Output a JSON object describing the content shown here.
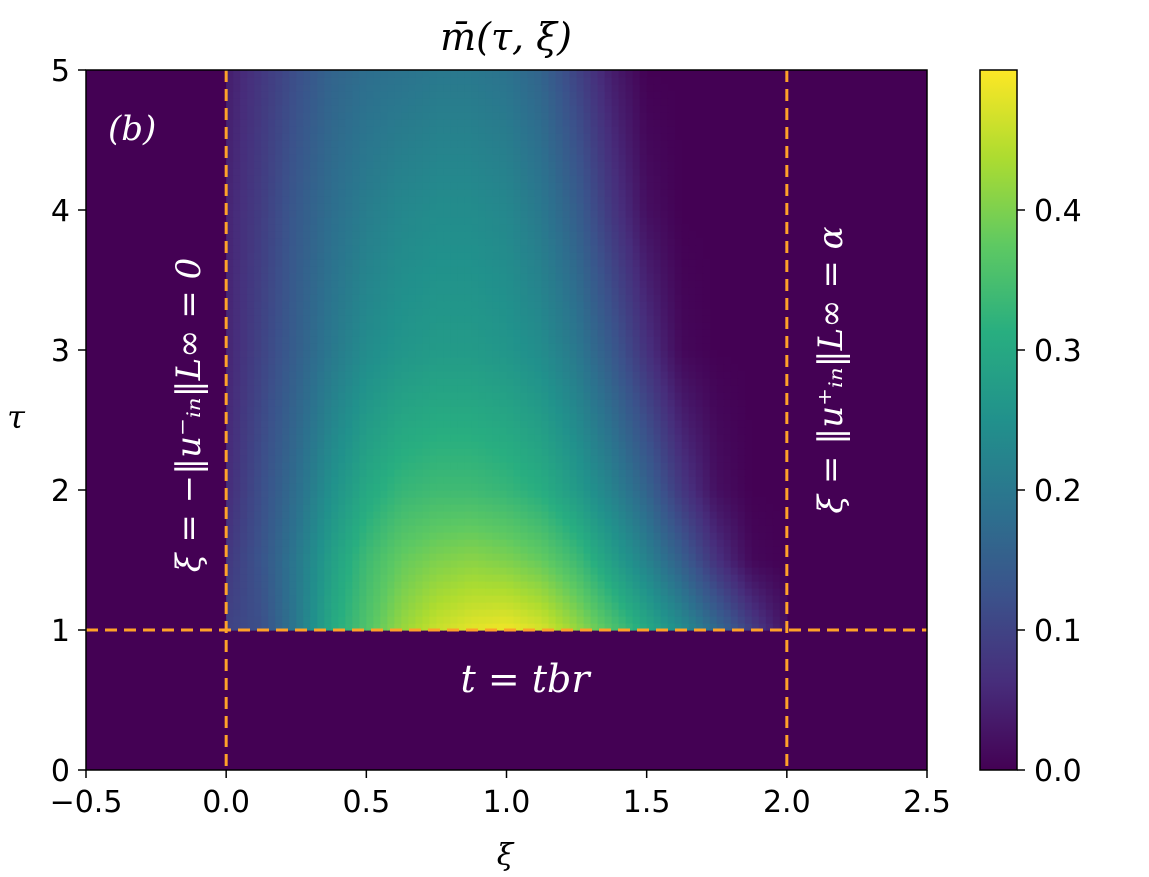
{
  "chart_data": {
    "type": "heatmap",
    "title": "m̄(τ, ξ)",
    "xlabel": "ξ",
    "ylabel": "τ",
    "xlim": [
      -0.5,
      2.5
    ],
    "ylim": [
      0,
      5
    ],
    "x_ticks": [
      "−0.5",
      "0.0",
      "0.5",
      "1.0",
      "1.5",
      "2.0",
      "2.5"
    ],
    "x_tick_values": [
      -0.5,
      0,
      0.5,
      1,
      1.5,
      2,
      2.5
    ],
    "y_ticks": [
      "0",
      "1",
      "2",
      "3",
      "4",
      "5"
    ],
    "y_tick_values": [
      0,
      1,
      2,
      3,
      4,
      5
    ],
    "colormap": "viridis",
    "colorbar": {
      "range": [
        0,
        0.5
      ],
      "ticks": [
        "0.0",
        "0.1",
        "0.2",
        "0.3",
        "0.4"
      ],
      "tick_values": [
        0,
        0.1,
        0.2,
        0.3,
        0.4
      ]
    },
    "grid": false,
    "panel_label": "(b)",
    "background_value": 0,
    "xi_samples": [
      0,
      0.125,
      0.25,
      0.375,
      0.5,
      0.625,
      0.75,
      0.875,
      1.0,
      1.125,
      1.25,
      1.375,
      1.5,
      1.625,
      1.75,
      1.875,
      2.0
    ],
    "tau_samples": [
      1,
      1.5,
      2,
      3,
      4,
      5
    ],
    "values": [
      [
        0.1,
        0.12,
        0.2,
        0.3,
        0.36,
        0.42,
        0.46,
        0.48,
        0.49,
        0.47,
        0.42,
        0.36,
        0.3,
        0.24,
        0.17,
        0.09,
        0.02
      ],
      [
        0.08,
        0.13,
        0.2,
        0.28,
        0.34,
        0.38,
        0.4,
        0.41,
        0.4,
        0.38,
        0.34,
        0.28,
        0.22,
        0.15,
        0.07,
        0.01,
        0.0
      ],
      [
        0.06,
        0.12,
        0.18,
        0.25,
        0.3,
        0.33,
        0.34,
        0.34,
        0.33,
        0.31,
        0.27,
        0.22,
        0.16,
        0.08,
        0.02,
        0.0,
        0.0
      ],
      [
        0.05,
        0.1,
        0.15,
        0.2,
        0.24,
        0.26,
        0.27,
        0.27,
        0.26,
        0.24,
        0.2,
        0.14,
        0.07,
        0.01,
        0.0,
        0.0,
        0.0
      ],
      [
        0.05,
        0.09,
        0.14,
        0.18,
        0.21,
        0.23,
        0.24,
        0.24,
        0.23,
        0.2,
        0.15,
        0.08,
        0.02,
        0.0,
        0.0,
        0.0,
        0.0
      ],
      [
        0.04,
        0.08,
        0.12,
        0.16,
        0.18,
        0.19,
        0.2,
        0.2,
        0.19,
        0.16,
        0.1,
        0.04,
        0.0,
        0.0,
        0.0,
        0.0,
        0.0
      ]
    ],
    "reference_lines": {
      "color": "#ffa229",
      "vertical": [
        0,
        2
      ],
      "horizontal": [
        1
      ]
    },
    "annotations": {
      "left_line": "ξ = −‖u⁻ᵢₙ‖L∞ = 0",
      "right_line": "ξ = ‖u⁺ᵢₙ‖L∞ = α",
      "horizontal_line": "t = tbr"
    }
  }
}
